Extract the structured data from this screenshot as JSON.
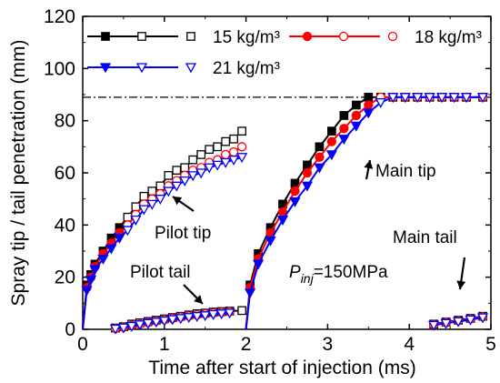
{
  "chart_data": {
    "type": "line",
    "xlabel": "Time after start of injection (ms)",
    "ylabel": "Spray tip / tail penetration (mm)",
    "xlim": [
      0,
      5
    ],
    "ylim": [
      0,
      120
    ],
    "xticks": [
      0,
      1,
      2,
      3,
      4,
      5
    ],
    "yticks": [
      0,
      20,
      40,
      60,
      80,
      100,
      120
    ],
    "reference_line": {
      "y": 89,
      "style": "dash-dot",
      "color": "#000000"
    },
    "legend": [
      "15 kg/m³",
      "18 kg/m³",
      "21 kg/m³"
    ],
    "series": [
      {
        "name": "15 kg/m³",
        "color": "#000000",
        "marker": "square",
        "segments": [
          {
            "label": "pilot-tip",
            "x": [
              0.0,
              0.05,
              0.1,
              0.15,
              0.25,
              0.35,
              0.45,
              0.55,
              0.65,
              0.75,
              0.85,
              0.95,
              1.05,
              1.15,
              1.25,
              1.35,
              1.45,
              1.55,
              1.65,
              1.75,
              1.85,
              1.95
            ],
            "y": [
              0,
              17,
              21,
              25,
              30,
              35,
              39,
              43,
              47,
              51,
              53,
              55,
              59,
              61,
              62,
              65,
              67,
              69,
              70,
              72,
              73,
              76
            ]
          },
          {
            "label": "pilot-tail",
            "x": [
              0.4,
              0.5,
              0.6,
              0.7,
              0.8,
              0.9,
              1.0,
              1.1,
              1.2,
              1.3,
              1.4,
              1.5,
              1.6,
              1.7,
              1.8,
              1.95
            ],
            "y": [
              0.5,
              1,
              2,
              2.5,
              3,
              3.5,
              4,
              4.5,
              5,
              5.5,
              6,
              6.2,
              6.6,
              6.8,
              7,
              7.2
            ]
          },
          {
            "label": "main-tip",
            "x": [
              2.0,
              2.05,
              2.15,
              2.3,
              2.45,
              2.6,
              2.75,
              2.9,
              3.05,
              3.2,
              3.35,
              3.5,
              3.65,
              3.8,
              3.95,
              4.1,
              4.25,
              4.4,
              4.55,
              4.7,
              4.9
            ],
            "y": [
              0,
              17,
              29,
              39,
              48,
              56,
              63,
              70,
              76,
              82,
              86,
              89,
              89,
              89,
              89,
              89,
              89,
              89,
              89,
              89,
              89
            ]
          },
          {
            "label": "main-tail",
            "x": [
              4.3,
              4.45,
              4.6,
              4.75,
              4.9
            ],
            "y": [
              2,
              2.8,
              3.5,
              4.2,
              5
            ]
          }
        ]
      },
      {
        "name": "18 kg/m³",
        "color": "#ff0000",
        "marker": "circle",
        "segments": [
          {
            "label": "pilot-tip",
            "x": [
              0.0,
              0.05,
              0.1,
              0.15,
              0.25,
              0.35,
              0.45,
              0.55,
              0.65,
              0.75,
              0.85,
              0.95,
              1.05,
              1.15,
              1.25,
              1.35,
              1.45,
              1.55,
              1.65,
              1.75,
              1.85,
              1.95
            ],
            "y": [
              0,
              16,
              20,
              24,
              29,
              33,
              37,
              40,
              44,
              48,
              50,
              52,
              55,
              57,
              59,
              61,
              62,
              64,
              65,
              67,
              68,
              70
            ]
          },
          {
            "label": "pilot-tail",
            "x": [
              0.4,
              0.5,
              0.6,
              0.7,
              0.8,
              0.9,
              1.0,
              1.1,
              1.2,
              1.3,
              1.4,
              1.5,
              1.6,
              1.7,
              1.8
            ],
            "y": [
              0.3,
              0.8,
              1.5,
              2,
              2.6,
              3.2,
              3.7,
              4.2,
              4.7,
              5.1,
              5.5,
              5.9,
              6.2,
              6.5,
              6.8
            ]
          },
          {
            "label": "main-tip",
            "x": [
              2.0,
              2.05,
              2.15,
              2.3,
              2.45,
              2.6,
              2.75,
              2.9,
              3.05,
              3.2,
              3.35,
              3.5,
              3.65,
              3.8,
              3.95,
              4.1,
              4.25,
              4.4,
              4.55,
              4.7,
              4.9
            ],
            "y": [
              0,
              16,
              27,
              37,
              45,
              53,
              60,
              66,
              72,
              77,
              82,
              86,
              89,
              89,
              89,
              89,
              89,
              89,
              89,
              89,
              89
            ]
          },
          {
            "label": "main-tail",
            "x": [
              4.3,
              4.45,
              4.6,
              4.75,
              4.9
            ],
            "y": [
              1.8,
              2.6,
              3.3,
              4,
              4.8
            ]
          }
        ]
      },
      {
        "name": "21 kg/m³",
        "color": "#0000ff",
        "marker": "triangle-down",
        "segments": [
          {
            "label": "pilot-tip",
            "x": [
              0.0,
              0.05,
              0.1,
              0.15,
              0.25,
              0.35,
              0.45,
              0.55,
              0.65,
              0.75,
              0.85,
              0.95,
              1.05,
              1.15,
              1.25,
              1.35,
              1.45,
              1.55,
              1.65,
              1.75,
              1.85,
              1.95
            ],
            "y": [
              0,
              15,
              19,
              23,
              27,
              31,
              35,
              38,
              42,
              46,
              48,
              50,
              53,
              55,
              57,
              59,
              60,
              62,
              63,
              64,
              65,
              66
            ]
          },
          {
            "label": "pilot-tail",
            "x": [
              0.4,
              0.5,
              0.6,
              0.7,
              0.8,
              0.9,
              1.0,
              1.1,
              1.2,
              1.3,
              1.4,
              1.5,
              1.6,
              1.7,
              1.8
            ],
            "y": [
              0.2,
              0.6,
              1.2,
              1.8,
              2.3,
              2.8,
              3.3,
              3.8,
              4.2,
              4.6,
              5,
              5.3,
              5.7,
              6,
              6.3
            ]
          },
          {
            "label": "main-tip",
            "x": [
              2.0,
              2.05,
              2.15,
              2.3,
              2.45,
              2.6,
              2.75,
              2.9,
              3.05,
              3.2,
              3.35,
              3.5,
              3.65,
              3.8,
              3.95,
              4.1,
              4.25,
              4.4,
              4.55,
              4.7,
              4.9
            ],
            "y": [
              0,
              14,
              25,
              34,
              42,
              49,
              55,
              62,
              67,
              73,
              78,
              83,
              87,
              89,
              89,
              89,
              89,
              89,
              89,
              89,
              89
            ]
          },
          {
            "label": "main-tail",
            "x": [
              4.3,
              4.45,
              4.6,
              4.75,
              4.9
            ],
            "y": [
              1.6,
              2.3,
              3,
              3.7,
              4.5
            ]
          }
        ]
      }
    ],
    "annotations": [
      {
        "text": "Pilot tip",
        "x": 1.3,
        "y": 43
      },
      {
        "text": "Pilot tail",
        "x": 1.1,
        "y": 25
      },
      {
        "text": "Main tip",
        "x": 3.75,
        "y": 66
      },
      {
        "text": "Main tail",
        "x": 4.55,
        "y": 38
      },
      {
        "text": "P",
        "sub": "inj",
        "rest": "=150MPa",
        "x": 2.55,
        "y": 27
      }
    ],
    "grid": false,
    "legend_position": "top"
  }
}
